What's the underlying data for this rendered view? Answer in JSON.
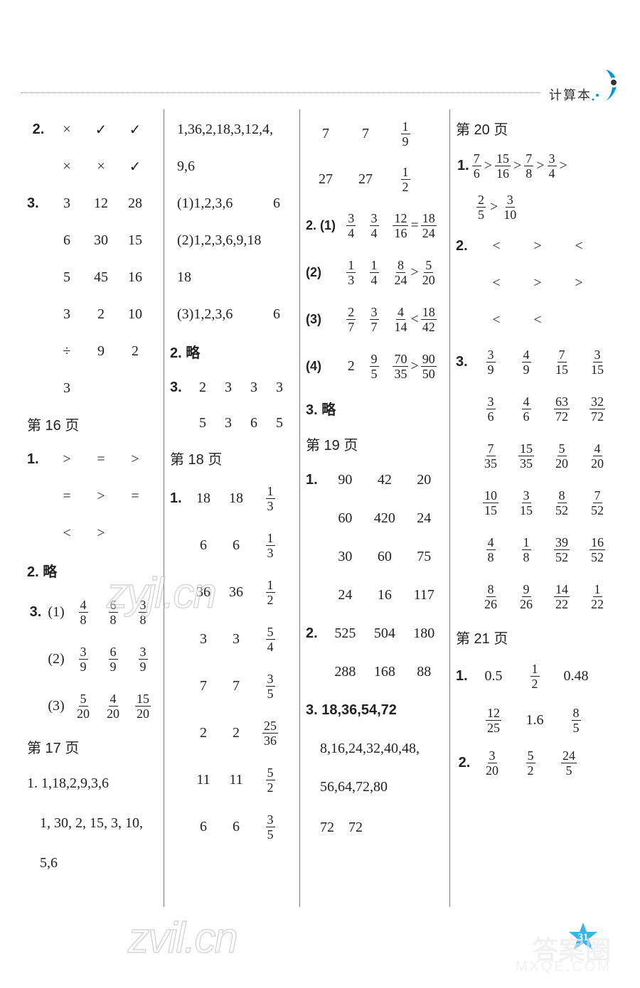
{
  "header": {
    "label": "计算本",
    "page_number": "31"
  },
  "colors": {
    "accent": "#00b4e6",
    "text": "#222222",
    "divider": "#7a7a7a",
    "watermark": "#b8b8b8"
  },
  "watermarks": {
    "w1": "zyjl.cn",
    "w2": "zvil.cn",
    "w3": "答案圈",
    "w4": "MXQE.COM"
  },
  "col1": {
    "q2_rows": [
      [
        "2.",
        "×",
        "✓",
        "✓"
      ],
      [
        "",
        "×",
        "×",
        "✓"
      ]
    ],
    "q3_rows": [
      [
        "3.",
        "3",
        "12",
        "28"
      ],
      [
        "",
        "6",
        "30",
        "15"
      ],
      [
        "",
        "5",
        "45",
        "16"
      ],
      [
        "",
        "3",
        "2",
        "10"
      ],
      [
        "",
        "÷",
        "9",
        "2"
      ],
      [
        "",
        "3",
        "",
        ""
      ]
    ],
    "p16": "第 16 页",
    "p16_q1_rows": [
      [
        "1.",
        ">",
        "=",
        ">"
      ],
      [
        "",
        "=",
        ">",
        "="
      ],
      [
        "",
        "<",
        ">",
        ""
      ]
    ],
    "p16_q2": "2. 略",
    "p16_q3_prefix": "3.",
    "p16_q3_rows": [
      [
        "(1)",
        "4/8",
        "6/8",
        "3/8"
      ],
      [
        "(2)",
        "3/9",
        "6/9",
        "3/9"
      ],
      [
        "(3)",
        "5/20",
        "4/20",
        "15/20"
      ]
    ],
    "p17": "第 17 页",
    "p17_q1_lines": [
      "1. 1,18,2,9,3,6",
      "1, 30, 2, 15, 3, 10,",
      "5,6"
    ]
  },
  "col2": {
    "top_lines": [
      "1,36,2,18,3,12,4,",
      "9,6"
    ],
    "factor_rows": [
      [
        "(1)1,2,3,6",
        "6"
      ],
      [
        "(2)1,2,3,6,9,18",
        ""
      ],
      [
        "18",
        ""
      ],
      [
        "(3)1,2,3,6",
        "6"
      ]
    ],
    "q2": "2. 略",
    "q3_rows": [
      [
        "3.",
        "2",
        "3",
        "3",
        "3"
      ],
      [
        "",
        "5",
        "3",
        "6",
        "5"
      ]
    ],
    "p18": "第 18 页",
    "p18_q1_rows": [
      [
        "1.",
        "18",
        "18",
        "1/3"
      ],
      [
        "",
        "6",
        "6",
        "1/3"
      ],
      [
        "",
        "36",
        "36",
        "1/2"
      ],
      [
        "",
        "3",
        "3",
        "5/4"
      ],
      [
        "",
        "7",
        "7",
        "3/5"
      ],
      [
        "",
        "2",
        "2",
        "25/36"
      ],
      [
        "",
        "11",
        "11",
        "5/2"
      ],
      [
        "",
        "6",
        "6",
        "3/5"
      ]
    ]
  },
  "col3": {
    "top_rows": [
      [
        "7",
        "7",
        "1/9"
      ],
      [
        "27",
        "27",
        "1/2"
      ]
    ],
    "q2_rows": [
      [
        "2. (1)",
        "3/4",
        "3/4",
        "12/16",
        "=",
        "18/24"
      ],
      [
        "(2)",
        "1/3",
        "1/4",
        "8/24",
        ">",
        "5/20"
      ],
      [
        "(3)",
        "2/7",
        "3/7",
        "4/14",
        "<",
        "18/42"
      ],
      [
        "(4)",
        "2",
        "9/5",
        "70/35",
        ">",
        "90/50"
      ]
    ],
    "q3": "3. 略",
    "p19": "第 19 页",
    "p19_q1_rows": [
      [
        "1.",
        "90",
        "42",
        "20"
      ],
      [
        "",
        "60",
        "420",
        "24"
      ],
      [
        "",
        "30",
        "60",
        "75"
      ],
      [
        "",
        "24",
        "16",
        "117"
      ]
    ],
    "p19_q2_rows": [
      [
        "2.",
        "525",
        "504",
        "180"
      ],
      [
        "",
        "288",
        "168",
        "88"
      ]
    ],
    "p19_q3_lines": [
      "3. 18,36,54,72",
      "8,16,24,32,40,48,",
      "56,64,72,80",
      "72　72"
    ]
  },
  "col4": {
    "p20": "第 20 页",
    "p20_q1_line1_parts": [
      "1.",
      "7/6",
      ">",
      "15/16",
      ">",
      "7/8",
      ">",
      "3/4",
      ">"
    ],
    "p20_q1_line2_parts": [
      "2/5",
      ">",
      "3/10"
    ],
    "p20_q2_rows": [
      [
        "2.",
        "<",
        ">",
        "<"
      ],
      [
        "",
        "<",
        ">",
        ">"
      ],
      [
        "",
        "<",
        "<",
        ""
      ]
    ],
    "p20_q3_rows": [
      [
        "3.",
        "3/9",
        "4/9",
        "7/15",
        "3/15"
      ],
      [
        "",
        "3/6",
        "4/6",
        "63/72",
        "32/72"
      ],
      [
        "",
        "7/35",
        "15/35",
        "5/20",
        "4/20"
      ],
      [
        "",
        "10/15",
        "3/15",
        "8/52",
        "7/52"
      ],
      [
        "",
        "4/8",
        "1/8",
        "39/52",
        "16/52"
      ],
      [
        "",
        "8/26",
        "9/26",
        "14/22",
        "1/22"
      ]
    ],
    "p21": "第 21 页",
    "p21_q1_rows": [
      [
        "1.",
        "0.5",
        "1/2",
        "0.48"
      ],
      [
        "",
        "12/25",
        "1.6",
        "8/5"
      ]
    ],
    "p21_q2_row": [
      "2.",
      "3/20",
      "5/2",
      "24/5"
    ]
  }
}
